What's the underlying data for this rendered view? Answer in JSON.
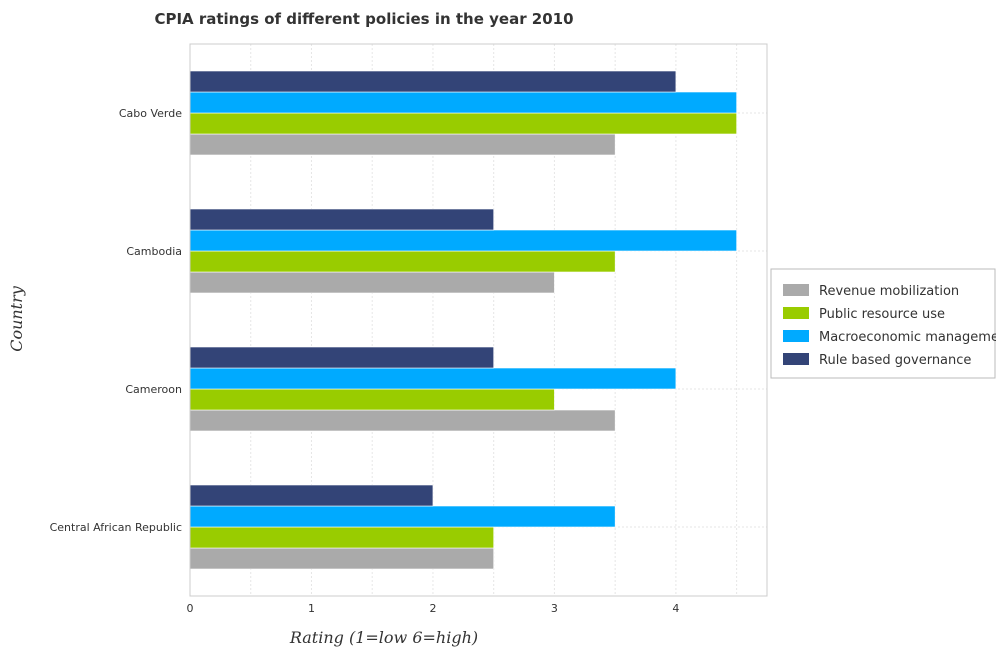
{
  "chart_data": {
    "type": "bar",
    "orientation": "horizontal",
    "title": "CPIA ratings of different policies in the year 2010",
    "xlabel": "Rating (1=low 6=high)",
    "ylabel": "Country",
    "categories": [
      "Cabo Verde",
      "Cambodia",
      "Cameroon",
      "Central African Republic"
    ],
    "series": [
      {
        "name": "Revenue mobilization",
        "color": "#aaaaaa",
        "values": [
          3.5,
          3.0,
          3.5,
          2.5
        ]
      },
      {
        "name": "Public resource use",
        "color": "#99cc00",
        "values": [
          4.5,
          3.5,
          3.0,
          2.5
        ]
      },
      {
        "name": "Macroeconomic management",
        "color": "#00aaff",
        "values": [
          4.5,
          4.5,
          4.0,
          3.5
        ]
      },
      {
        "name": "Rule based governance",
        "color": "#334477",
        "values": [
          4.0,
          2.5,
          2.5,
          2.0
        ]
      }
    ],
    "xlim": [
      0,
      4.75
    ],
    "xticks": [
      "0",
      "1",
      "2",
      "3",
      "4"
    ],
    "grid": true,
    "legend_position": "right"
  }
}
